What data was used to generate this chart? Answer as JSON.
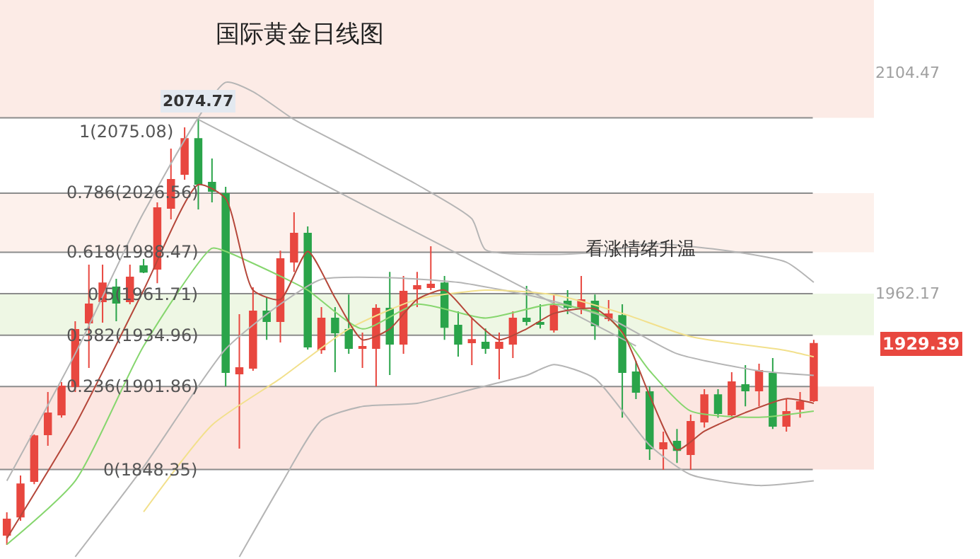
{
  "chart_data": {
    "type": "candlestick",
    "title": "国际黄金日线图",
    "categories": [
      null,
      null,
      null,
      null,
      null,
      null,
      null,
      null,
      null,
      null,
      null,
      null,
      null,
      null,
      null,
      null,
      null,
      null,
      null,
      null,
      null,
      null,
      null,
      null,
      null,
      null,
      null,
      null,
      null,
      null,
      null,
      null,
      null,
      null,
      null,
      null,
      null,
      null,
      null,
      null,
      null,
      null,
      null,
      null,
      null,
      null,
      null,
      null,
      null,
      null,
      null,
      null,
      null,
      null,
      null,
      null,
      null,
      null,
      null,
      null
    ],
    "ohlc": [
      [
        1806.1,
        1820.7,
        1799.7,
        1816.1
      ],
      [
        1817.9,
        1844.4,
        1815.2,
        1838.9
      ],
      [
        1840.8,
        1870.9,
        1838.9,
        1869.9
      ],
      [
        1870.9,
        1898.3,
        1863.6,
        1884.6
      ],
      [
        1883.7,
        1904.7,
        1881.8,
        1901.9
      ],
      [
        1901.9,
        1943.9,
        1898.3,
        1938.4
      ],
      [
        1943.0,
        1980.4,
        1913.8,
        1954.9
      ],
      [
        1956.7,
        1980.4,
        1943.0,
        1968.5
      ],
      [
        1965.8,
        1971.3,
        1943.9,
        1955.8
      ],
      [
        1956.7,
        1980.4,
        1954.9,
        1972.2
      ],
      [
        1979.5,
        1984.1,
        1974.9,
        1975.8
      ],
      [
        1977.7,
        2020.6,
        1968.5,
        2016.9
      ],
      [
        2016.9,
        2055.3,
        2009.6,
        2035.2
      ],
      [
        2038.8,
        2069.0,
        2035.2,
        2061.6
      ],
      [
        2061.6,
        2074.77,
        2016.0,
        2032.4
      ],
      [
        2033.4,
        2048.9,
        2020.6,
        2027.9
      ],
      [
        2026.1,
        2030.6,
        1902.0,
        1911.1
      ],
      [
        1910.1,
        1948.5,
        1861.8,
        1913.8
      ],
      [
        1913.8,
        1965.8,
        1912.0,
        1950.3
      ],
      [
        1950.3,
        1959.4,
        1932.0,
        1943.9
      ],
      [
        1943.9,
        1989.5,
        1930.2,
        1984.1
      ],
      [
        1982.2,
        2014.2,
        1975.8,
        2000.5
      ],
      [
        2000.5,
        2005.1,
        1925.7,
        1927.5
      ],
      [
        1925.7,
        1953.0,
        1922.9,
        1945.7
      ],
      [
        1945.7,
        1953.0,
        1911.1,
        1936.6
      ],
      [
        1938.4,
        1961.2,
        1922.9,
        1926.6
      ],
      [
        1926.6,
        1936.6,
        1913.8,
        1927.5
      ],
      [
        1926.6,
        1954.9,
        1902.0,
        1952.1
      ],
      [
        1952.1,
        1975.8,
        1909.2,
        1929.3
      ],
      [
        1929.3,
        1973.1,
        1922.9,
        1963.1
      ],
      [
        1964.9,
        1975.8,
        1953.0,
        1966.7
      ],
      [
        1965.8,
        1992.3,
        1964.0,
        1967.6
      ],
      [
        1968.5,
        1973.1,
        1932.0,
        1940.2
      ],
      [
        1941.2,
        1950.3,
        1921.1,
        1929.3
      ],
      [
        1930.2,
        1945.7,
        1915.6,
        1932.0
      ],
      [
        1930.2,
        1939.3,
        1922.9,
        1926.6
      ],
      [
        1926.6,
        1936.6,
        1906.5,
        1930.2
      ],
      [
        1929.3,
        1950.3,
        1920.2,
        1945.7
      ],
      [
        1945.7,
        1966.7,
        1941.2,
        1943.9
      ],
      [
        1943.0,
        1954.9,
        1939.3,
        1942.1
      ],
      [
        1938.4,
        1961.2,
        1936.6,
        1953.9
      ],
      [
        1956.7,
        1964.0,
        1948.5,
        1953.0
      ],
      [
        1953.0,
        1973.1,
        1948.5,
        1957.6
      ],
      [
        1956.7,
        1961.2,
        1932.0,
        1941.2
      ],
      [
        1945.7,
        1957.6,
        1943.9,
        1948.5
      ],
      [
        1947.5,
        1954.9,
        1881.8,
        1911.1
      ],
      [
        1911.1,
        1918.3,
        1893.7,
        1898.3
      ],
      [
        1898.3,
        1901.9,
        1854.5,
        1861.8
      ],
      [
        1861.8,
        1872.7,
        1848.1,
        1865.4
      ],
      [
        1866.3,
        1874.5,
        1852.6,
        1860.8
      ],
      [
        1858.1,
        1883.7,
        1848.1,
        1879.1
      ],
      [
        1879.1,
        1900.1,
        1875.4,
        1896.4
      ],
      [
        1896.4,
        1900.1,
        1881.8,
        1884.6
      ],
      [
        1883.7,
        1911.1,
        1881.8,
        1904.7
      ],
      [
        1902.8,
        1915.6,
        1889.1,
        1899.2
      ],
      [
        1899.2,
        1916.5,
        1889.1,
        1912.0
      ],
      [
        1910.1,
        1920.2,
        1874.5,
        1876.4
      ],
      [
        1876.4,
        1893.7,
        1872.7,
        1885.5
      ],
      [
        1887.3,
        1898.3,
        1881.8,
        1891.9
      ],
      [
        1892.8,
        1932.0,
        1891.9,
        1929.39
      ]
    ],
    "colors": [
      "#e8473f",
      "#e8473f",
      "#e8473f",
      "#e8473f",
      "#e8473f",
      "#e8473f",
      "#e8473f",
      "#e8473f",
      "#2aa44a",
      "#e8473f",
      "#2aa44a",
      "#e8473f",
      "#e8473f",
      "#e8473f",
      "#2aa44a",
      "#2aa44a",
      "#2aa44a",
      "#e8473f",
      "#e8473f",
      "#2aa44a",
      "#e8473f",
      "#e8473f",
      "#2aa44a",
      "#e8473f",
      "#2aa44a",
      "#2aa44a",
      "#e8473f",
      "#e8473f",
      "#2aa44a",
      "#e8473f",
      "#e8473f",
      "#e8473f",
      "#2aa44a",
      "#2aa44a",
      "#e8473f",
      "#2aa44a",
      "#e8473f",
      "#e8473f",
      "#2aa44a",
      "#2aa44a",
      "#e8473f",
      "#2aa44a",
      "#e8473f",
      "#2aa44a",
      "#e8473f",
      "#2aa44a",
      "#2aa44a",
      "#2aa44a",
      "#e8473f",
      "#2aa44a",
      "#e8473f",
      "#e8473f",
      "#2aa44a",
      "#e8473f",
      "#2aa44a",
      "#e8473f",
      "#2aa44a",
      "#e8473f",
      "#e8473f",
      "#e8473f"
    ],
    "series": [
      {
        "type": "line",
        "color": "#b5b5b5",
        "values": [
          1841,
          null,
          null,
          null,
          null,
          1923,
          null,
          null,
          null,
          null,
          2014,
          null,
          null,
          null,
          null,
          null,
          2098,
          null,
          2092,
          null,
          null,
          2074,
          null,
          null,
          null,
          null,
          2051,
          null,
          null,
          null,
          2032,
          null,
          null,
          null,
          2010,
          1990,
          null,
          null,
          null,
          null,
          1987,
          null,
          null,
          null,
          1989,
          null,
          null,
          1994,
          null,
          null,
          null,
          null,
          null,
          1989,
          null,
          null,
          null,
          1982,
          null,
          1969
        ]
      },
      {
        "type": "line",
        "color": "#b5b5b5",
        "values": [
          null,
          null,
          null,
          null,
          null,
          null,
          null,
          null,
          null,
          null,
          null,
          null,
          null,
          null,
          2074,
          null,
          null,
          null,
          null,
          null,
          null,
          null,
          null,
          null,
          null,
          null,
          null,
          null,
          null,
          null,
          null,
          null,
          null,
          null,
          null,
          null,
          null,
          null,
          null,
          null,
          null,
          null,
          null,
          null,
          null,
          null,
          1928,
          null,
          null,
          null,
          null,
          null,
          null,
          null,
          null,
          null,
          null,
          null,
          null,
          null
        ]
      },
      {
        "type": "line",
        "color": "#b5b5b5",
        "values": [
          null,
          null,
          null,
          null,
          null,
          1792,
          null,
          null,
          null,
          null,
          1850,
          null,
          null,
          null,
          null,
          null,
          1926,
          null,
          null,
          null,
          1955,
          null,
          null,
          1971,
          null,
          null,
          null,
          null,
          1972,
          null,
          null,
          null,
          null,
          1969,
          null,
          null,
          null,
          null,
          null,
          1959,
          null,
          null,
          null,
          null,
          1946,
          null,
          null,
          null,
          null,
          1923,
          null,
          null,
          null,
          null,
          null,
          1912,
          null,
          null,
          null,
          1909
        ]
      },
      {
        "type": "line",
        "color": "#b5b5b5",
        "values": [
          null,
          null,
          null,
          null,
          null,
          null,
          null,
          null,
          null,
          null,
          null,
          null,
          null,
          null,
          null,
          null,
          null,
          1792,
          null,
          null,
          1838,
          null,
          null,
          1880,
          null,
          null,
          1889,
          null,
          null,
          null,
          1891,
          null,
          null,
          null,
          1900,
          null,
          null,
          null,
          1909,
          null,
          1916,
          null,
          null,
          1907,
          null,
          null,
          null,
          1864,
          null,
          null,
          1845,
          null,
          null,
          null,
          null,
          1838,
          null,
          null,
          null,
          1841
        ]
      },
      {
        "type": "line",
        "color": "#f2e08c",
        "values": [
          null,
          null,
          null,
          null,
          null,
          null,
          null,
          null,
          null,
          null,
          1821,
          null,
          null,
          null,
          null,
          1877,
          null,
          null,
          null,
          null,
          1907,
          null,
          null,
          null,
          null,
          1939,
          null,
          null,
          null,
          null,
          1958,
          null,
          null,
          null,
          null,
          1964,
          null,
          null,
          null,
          null,
          1961,
          null,
          null,
          null,
          null,
          1949,
          null,
          null,
          null,
          null,
          1934,
          null,
          null,
          null,
          null,
          null,
          null,
          1925,
          null,
          1921
        ]
      },
      {
        "type": "line",
        "color": "#86d66e",
        "values": [
          1800,
          null,
          null,
          null,
          null,
          1841,
          null,
          null,
          null,
          null,
          1928,
          null,
          null,
          null,
          null,
          1991,
          1989,
          null,
          null,
          null,
          1973,
          null,
          1964,
          null,
          null,
          null,
          1939,
          null,
          null,
          null,
          1955,
          null,
          null,
          null,
          null,
          1946,
          null,
          null,
          null,
          null,
          1955,
          null,
          null,
          null,
          1946,
          null,
          null,
          1912,
          null,
          null,
          1886,
          null,
          null,
          null,
          null,
          1882,
          null,
          null,
          null,
          1886
        ]
      },
      {
        "type": "line",
        "color": "#b5473a",
        "values": [
          1804,
          null,
          null,
          null,
          null,
          1877,
          null,
          null,
          null,
          null,
          1964,
          null,
          null,
          null,
          2032,
          null,
          2023,
          null,
          1964,
          null,
          1958,
          null,
          1989,
          null,
          1959,
          null,
          1932,
          null,
          1939,
          null,
          1958,
          null,
          1964,
          null,
          1946,
          null,
          1932,
          null,
          1939,
          null,
          1949,
          null,
          null,
          1952,
          null,
          1937,
          null,
          1896,
          null,
          1861,
          null,
          1873,
          null,
          null,
          1885,
          null,
          null,
          1894,
          null,
          1891
        ]
      }
    ],
    "ylim": [
      1790.6,
      2151.1
    ],
    "yticks": [
      2104.47,
      1962.17
    ],
    "tick_labels": "y",
    "ref_lines": [
      {
        "axis": "y",
        "value": 2075.08,
        "label": "1(2075.08)"
      },
      {
        "axis": "y",
        "value": 2026.56,
        "label": "0.786(2026.56)"
      },
      {
        "axis": "y",
        "value": 1988.47,
        "label": "0.618(1988.47)"
      },
      {
        "axis": "y",
        "value": 1961.71,
        "label": "0.5(1961.71)"
      },
      {
        "axis": "y",
        "value": 1934.96,
        "label": "0.382(1934.96)"
      },
      {
        "axis": "y",
        "value": 1901.86,
        "label": "0.236(1901.86)"
      },
      {
        "axis": "y",
        "value": 1848.35,
        "label": "0(1848.35)"
      }
    ],
    "bands": [
      {
        "axis": "y",
        "from": 2075.08,
        "to": 2151.1,
        "color": "#fcebe6"
      },
      {
        "axis": "y",
        "from": 1988.47,
        "to": 2026.56,
        "color": "#fdf1ec"
      },
      {
        "axis": "y",
        "from": 1934.96,
        "to": 1961.71,
        "color": "#eef7e4"
      },
      {
        "axis": "y",
        "from": 1848.35,
        "to": 1901.86,
        "color": "#fce6e1"
      }
    ],
    "annotations": [
      {
        "text": "2074.77",
        "y": 2074.77
      },
      "看涨情绪升温",
      "1929.39"
    ],
    "grid": false
  }
}
